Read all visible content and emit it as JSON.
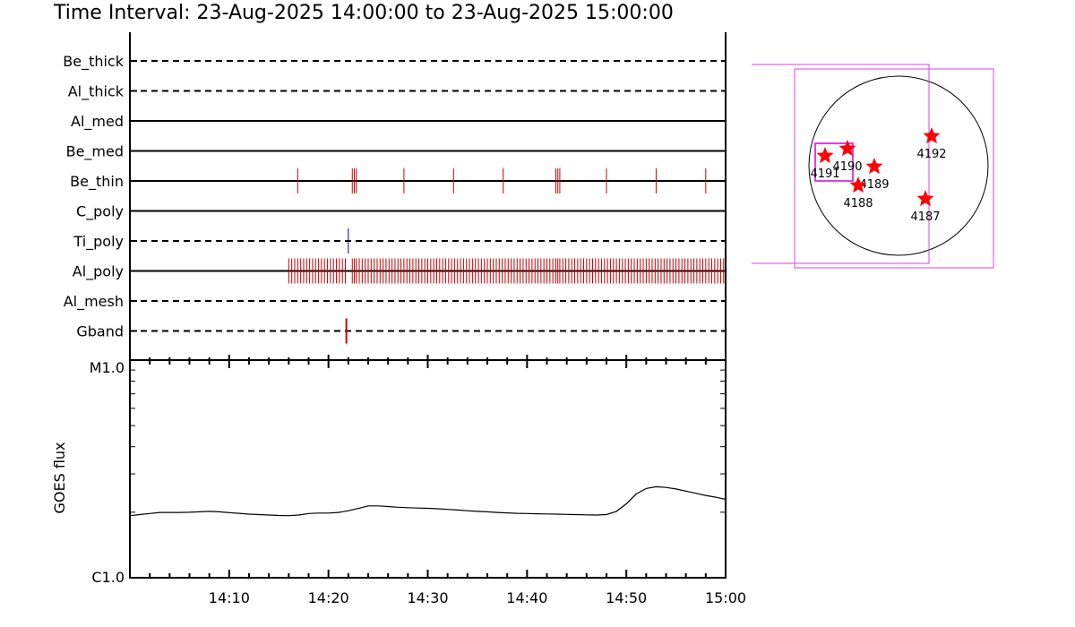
{
  "title": "Time Interval: 23-Aug-2025 14:00:00 to 23-Aug-2025 15:00:00",
  "chart_data": [
    {
      "type": "event-raster",
      "x_range": [
        "14:00",
        "15:00"
      ],
      "rows": [
        {
          "name": "Be_thick",
          "style": "dashed",
          "events": []
        },
        {
          "name": "Al_thick",
          "style": "dashed",
          "events": []
        },
        {
          "name": "Al_med",
          "style": "solid",
          "events": []
        },
        {
          "name": "Be_med",
          "style": "solid",
          "events": []
        },
        {
          "name": "Be_thin",
          "style": "solid",
          "events": [
            16.9,
            22.4,
            22.6,
            22.8,
            27.6,
            32.6,
            37.6,
            42.9,
            43.1,
            43.3,
            48.0,
            53.0,
            58.0
          ]
        },
        {
          "name": "C_poly",
          "style": "solid",
          "events": []
        },
        {
          "name": "Ti_poly",
          "style": "dashed",
          "events": [
            22.0
          ]
        },
        {
          "name": "Al_poly",
          "style": "solid",
          "events": [
            16.0,
            16.3,
            16.6,
            16.9,
            17.2,
            17.5,
            17.8,
            18.1,
            18.4,
            18.7,
            19.0,
            19.3,
            19.6,
            19.9,
            20.2,
            20.5,
            20.8,
            21.1,
            21.4,
            21.7,
            22.4,
            22.6,
            22.8,
            23.1,
            23.4,
            23.7,
            24.0,
            24.3,
            24.6,
            24.9,
            25.2,
            25.5,
            25.8,
            26.1,
            26.4,
            26.7,
            27.0,
            27.3,
            27.6,
            27.9,
            28.2,
            28.5,
            28.8,
            29.1,
            29.4,
            29.7,
            30.0,
            30.3,
            30.6,
            30.9,
            31.2,
            31.5,
            31.8,
            32.1,
            32.4,
            32.7,
            33.0,
            33.3,
            33.6,
            33.9,
            34.2,
            34.5,
            34.8,
            35.1,
            35.4,
            35.7,
            36.0,
            36.3,
            36.6,
            36.9,
            37.2,
            37.5,
            37.8,
            38.1,
            38.4,
            38.7,
            39.0,
            39.3,
            39.6,
            39.9,
            40.2,
            40.5,
            40.8,
            41.1,
            41.4,
            41.7,
            42.0,
            42.3,
            42.6,
            42.9,
            43.1,
            43.3,
            43.6,
            43.9,
            44.2,
            44.5,
            44.8,
            45.1,
            45.4,
            45.7,
            46.0,
            46.3,
            46.6,
            46.9,
            47.2,
            47.5,
            47.8,
            48.1,
            48.4,
            48.7,
            49.0,
            49.3,
            49.6,
            49.9,
            50.2,
            50.5,
            50.8,
            51.1,
            51.4,
            51.7,
            52.0,
            52.3,
            52.6,
            52.9,
            53.2,
            53.5,
            53.8,
            54.1,
            54.4,
            54.7,
            55.0,
            55.3,
            55.6,
            55.9,
            56.2,
            56.5,
            56.8,
            57.1,
            57.4,
            57.7,
            58.0,
            58.3,
            58.6,
            58.9,
            59.2,
            59.5,
            59.8
          ]
        },
        {
          "name": "Al_mesh",
          "style": "dashed",
          "events": []
        },
        {
          "name": "Gband",
          "style": "dashed",
          "events": [
            21.8
          ]
        }
      ]
    },
    {
      "type": "line",
      "ylabel": "GOES flux",
      "ylim_labels": [
        "C1.0",
        "M1.0"
      ],
      "x_ticks": [
        "14:10",
        "14:20",
        "14:30",
        "14:40",
        "14:50",
        "15:00"
      ],
      "x": [
        0,
        1,
        2,
        3,
        4,
        5,
        6,
        7,
        8,
        9,
        10,
        11,
        12,
        13,
        14,
        15,
        16,
        17,
        18,
        19,
        20,
        21,
        22,
        23,
        24,
        25,
        26,
        27,
        28,
        29,
        30,
        31,
        32,
        33,
        34,
        35,
        36,
        37,
        38,
        39,
        40,
        41,
        42,
        43,
        44,
        45,
        46,
        47,
        48,
        49,
        50,
        51,
        52,
        53,
        54,
        55,
        56,
        57,
        58,
        59,
        60
      ],
      "y": [
        0.285,
        0.29,
        0.295,
        0.3,
        0.3,
        0.3,
        0.301,
        0.303,
        0.305,
        0.303,
        0.299,
        0.296,
        0.292,
        0.29,
        0.288,
        0.286,
        0.285,
        0.288,
        0.295,
        0.297,
        0.297,
        0.3,
        0.308,
        0.318,
        0.33,
        0.33,
        0.327,
        0.324,
        0.322,
        0.32,
        0.319,
        0.317,
        0.314,
        0.311,
        0.308,
        0.305,
        0.303,
        0.3,
        0.298,
        0.296,
        0.295,
        0.294,
        0.293,
        0.292,
        0.291,
        0.29,
        0.289,
        0.288,
        0.29,
        0.305,
        0.34,
        0.385,
        0.41,
        0.418,
        0.415,
        0.408,
        0.398,
        0.388,
        0.378,
        0.37,
        0.36
      ]
    },
    {
      "type": "scatter",
      "regions": [
        {
          "label": "4191",
          "lon": -0.82,
          "lat": 0.11
        },
        {
          "label": "4190",
          "lon": -0.57,
          "lat": 0.19
        },
        {
          "label": "4189",
          "lon": -0.27,
          "lat": -0.01
        },
        {
          "label": "4188",
          "lon": -0.45,
          "lat": -0.22
        },
        {
          "label": "4192",
          "lon": 0.37,
          "lat": 0.33
        },
        {
          "label": "4187",
          "lon": 0.3,
          "lat": -0.37
        }
      ]
    }
  ],
  "colors": {
    "events": "#cc0000",
    "ti_event": "#0000aa",
    "fov": "#e040e0",
    "stars": "#ff0000"
  }
}
